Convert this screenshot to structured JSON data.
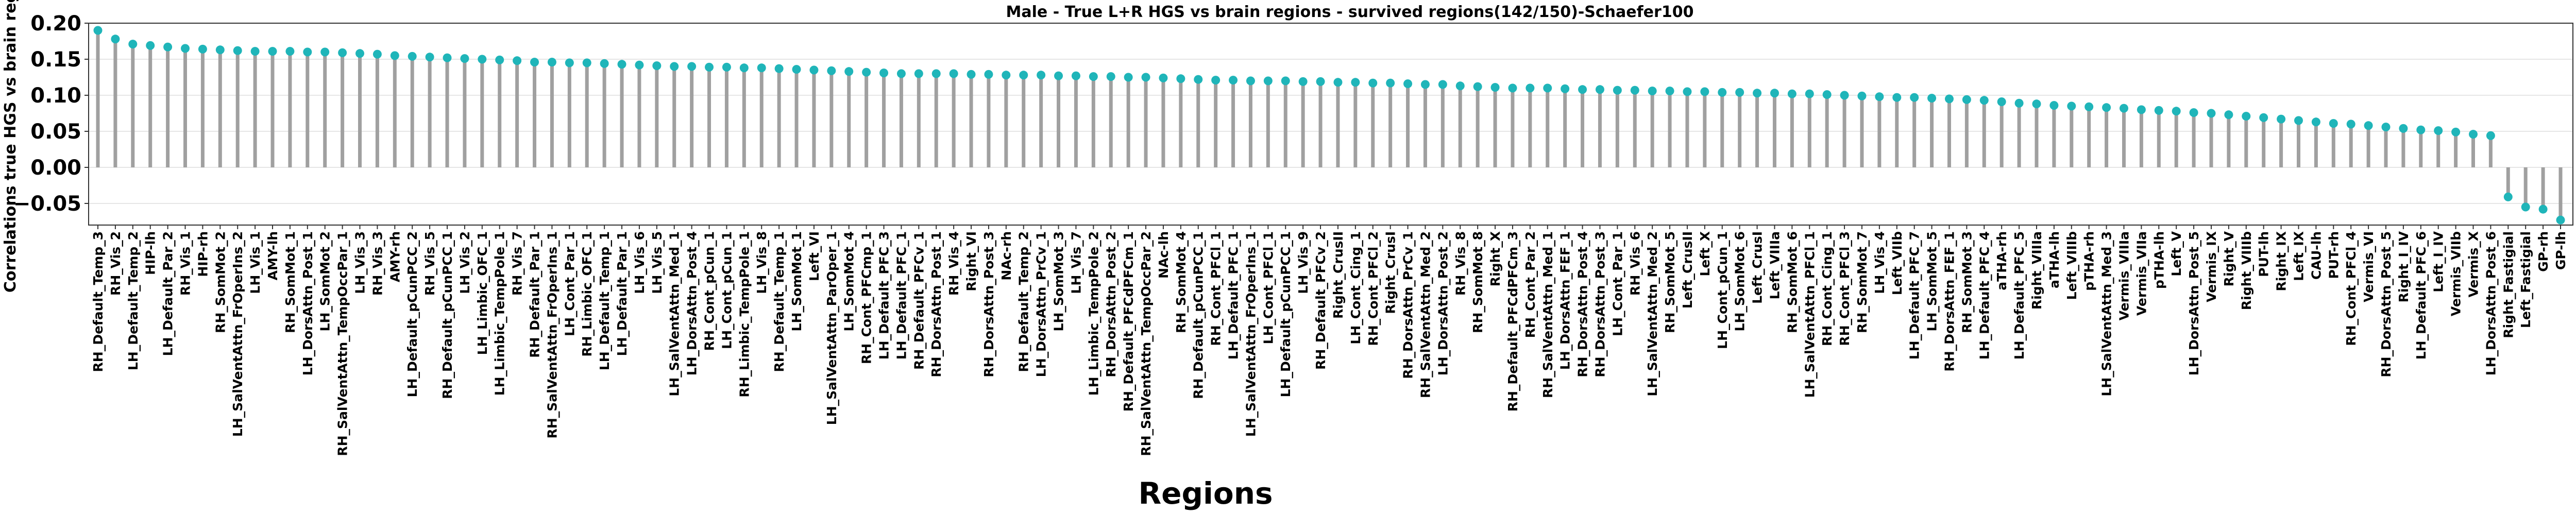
{
  "chart_data": {
    "type": "lollipop",
    "title": "Male - True L+R HGS vs brain regions - survived regions(142/150)-Schaefer100",
    "xlabel": "Regions",
    "ylabel": "Correlations true HGS vs brain regions",
    "ylim": [
      -0.08,
      0.2
    ],
    "yticks": [
      -0.05,
      0.0,
      0.05,
      0.1,
      0.15,
      0.2
    ],
    "ytick_labels": [
      "−0.05",
      "0.00",
      "0.05",
      "0.10",
      "0.15",
      "0.20"
    ],
    "grid": true,
    "colors": {
      "stem": "#a0a0a0",
      "marker": "#1fb5b9"
    },
    "categories": [
      "RH_Default_Temp_3",
      "RH_Vis_2",
      "LH_Default_Temp_2",
      "HIP-lh",
      "LH_Default_Par_2",
      "RH_Vis_1",
      "HIP-rh",
      "RH_SomMot_2",
      "LH_SalVentAttn_FrOperIns_2",
      "LH_Vis_1",
      "AMY-lh",
      "RH_SomMot_1",
      "LH_DorsAttn_Post_1",
      "LH_SomMot_2",
      "RH_SalVentAttn_TempOccPar_1",
      "LH_Vis_3",
      "RH_Vis_3",
      "AMY-rh",
      "LH_Default_pCunPCC_2",
      "RH_Vis_5",
      "RH_Default_pCunPCC_1",
      "LH_Vis_2",
      "LH_Limbic_OFC_1",
      "LH_Limbic_TempPole_1",
      "RH_Vis_7",
      "RH_Default_Par_1",
      "RH_SalVentAttn_FrOperIns_1",
      "LH_Cont_Par_1",
      "RH_Limbic_OFC_1",
      "LH_Default_Temp_1",
      "LH_Default_Par_1",
      "LH_Vis_6",
      "LH_Vis_5",
      "LH_SalVentAttn_Med_1",
      "LH_DorsAttn_Post_4",
      "RH_Cont_pCun_1",
      "LH_Cont_pCun_1",
      "RH_Limbic_TempPole_1",
      "LH_Vis_8",
      "RH_Default_Temp_1",
      "LH_SomMot_1",
      "Left_VI",
      "LH_SalVentAttn_ParOper_1",
      "LH_SomMot_4",
      "RH_Cont_PFCmp_1",
      "LH_Default_PFC_3",
      "LH_Default_PFC_1",
      "RH_Default_PFCv_1",
      "RH_DorsAttn_Post_1",
      "RH_Vis_4",
      "Right_VI",
      "RH_DorsAttn_Post_3",
      "NAc-rh",
      "RH_Default_Temp_2",
      "LH_DorsAttn_PrCv_1",
      "LH_SomMot_3",
      "LH_Vis_7",
      "LH_Limbic_TempPole_2",
      "RH_DorsAttn_Post_2",
      "RH_Default_PFCdPFCm_1",
      "RH_SalVentAttn_TempOccPar_2",
      "NAc-lh",
      "RH_SomMot_4",
      "RH_Default_pCunPCC_1",
      "RH_Cont_PFCl_1",
      "LH_Default_PFC_1",
      "LH_SalVentAttn_FrOperIns_1",
      "LH_Cont_PFCl_1",
      "LH_Default_pCunPCC_1",
      "LH_Vis_9",
      "RH_Default_PFCv_2",
      "Right_CrusII",
      "LH_Cont_Cing_1",
      "RH_Cont_PFCl_2",
      "Right_CrusI",
      "RH_DorsAttn_PrCv_1",
      "RH_SalVentAttn_Med_2",
      "LH_DorsAttn_Post_2",
      "RH_Vis_8",
      "RH_SomMot_8",
      "Right_X",
      "RH_Default_PFCdPFCm_3",
      "RH_Cont_Par_2",
      "RH_SalVentAttn_Med_1",
      "LH_DorsAttn_FEF_1",
      "RH_DorsAttn_Post_4",
      "RH_DorsAttn_Post_3",
      "LH_Cont_Par_1",
      "RH_Vis_6",
      "LH_SalVentAttn_Med_2",
      "RH_SomMot_5",
      "Left_CrusII",
      "Left_X",
      "LH_Cont_pCun_1",
      "LH_SomMot_6",
      "Left_CrusI",
      "Left_VIIIa",
      "RH_SomMot_6",
      "LH_SalVentAttn_PFCl_1",
      "RH_Cont_Cing_1",
      "RH_Cont_PFCl_3",
      "RH_SomMot_7",
      "LH_Vis_4",
      "Left_VIIb",
      "LH_Default_PFC_7",
      "LH_SomMot_5",
      "RH_DorsAttn_FEF_1",
      "RH_SomMot_3",
      "LH_Default_PFC_4",
      "aTHA-rh",
      "LH_Default_PFC_5",
      "Right_VIIIa",
      "aTHA-lh",
      "Left_VIIIb",
      "pTHA-rh",
      "LH_SalVentAttn_Med_3",
      "Vermis_VIIIa",
      "Vermis_VIIa",
      "pTHA-lh",
      "Left_V",
      "LH_DorsAttn_Post_5",
      "Vermis_IX",
      "Right_V",
      "Right_VIIIb",
      "PUT-lh",
      "Right_IX",
      "Left_IX",
      "CAU-lh",
      "PUT-rh",
      "RH_Cont_PFCl_4",
      "Vermis_VI",
      "RH_DorsAttn_Post_5",
      "Right_I_IV",
      "LH_Default_PFC_6",
      "Left_I_IV",
      "Vermis_VIIb",
      "Vermis_X",
      "LH_DorsAttn_Post_6",
      "Right_Fastigial",
      "Left_Fastigial",
      "GP-rh",
      "GP-lh"
    ],
    "values": [
      0.19,
      0.178,
      0.171,
      0.169,
      0.167,
      0.165,
      0.164,
      0.163,
      0.162,
      0.161,
      0.161,
      0.161,
      0.16,
      0.16,
      0.159,
      0.158,
      0.157,
      0.155,
      0.154,
      0.153,
      0.152,
      0.151,
      0.15,
      0.149,
      0.148,
      0.146,
      0.146,
      0.145,
      0.145,
      0.144,
      0.143,
      0.142,
      0.141,
      0.14,
      0.14,
      0.139,
      0.139,
      0.138,
      0.138,
      0.137,
      0.136,
      0.135,
      0.134,
      0.133,
      0.132,
      0.131,
      0.13,
      0.13,
      0.13,
      0.13,
      0.129,
      0.129,
      0.128,
      0.128,
      0.128,
      0.127,
      0.127,
      0.126,
      0.126,
      0.125,
      0.125,
      0.124,
      0.123,
      0.122,
      0.121,
      0.121,
      0.12,
      0.12,
      0.12,
      0.119,
      0.119,
      0.118,
      0.118,
      0.117,
      0.117,
      0.116,
      0.115,
      0.115,
      0.113,
      0.112,
      0.111,
      0.11,
      0.11,
      0.11,
      0.109,
      0.108,
      0.108,
      0.107,
      0.107,
      0.106,
      0.106,
      0.105,
      0.105,
      0.104,
      0.104,
      0.103,
      0.103,
      0.102,
      0.102,
      0.101,
      0.1,
      0.099,
      0.098,
      0.097,
      0.097,
      0.096,
      0.095,
      0.094,
      0.093,
      0.091,
      0.089,
      0.088,
      0.086,
      0.085,
      0.084,
      0.083,
      0.082,
      0.08,
      0.079,
      0.078,
      0.076,
      0.075,
      0.073,
      0.071,
      0.069,
      0.067,
      0.065,
      0.063,
      0.061,
      0.06,
      0.058,
      0.056,
      0.054,
      0.052,
      0.051,
      0.049,
      0.046,
      0.044,
      -0.041,
      -0.055,
      -0.058,
      -0.073
    ]
  }
}
